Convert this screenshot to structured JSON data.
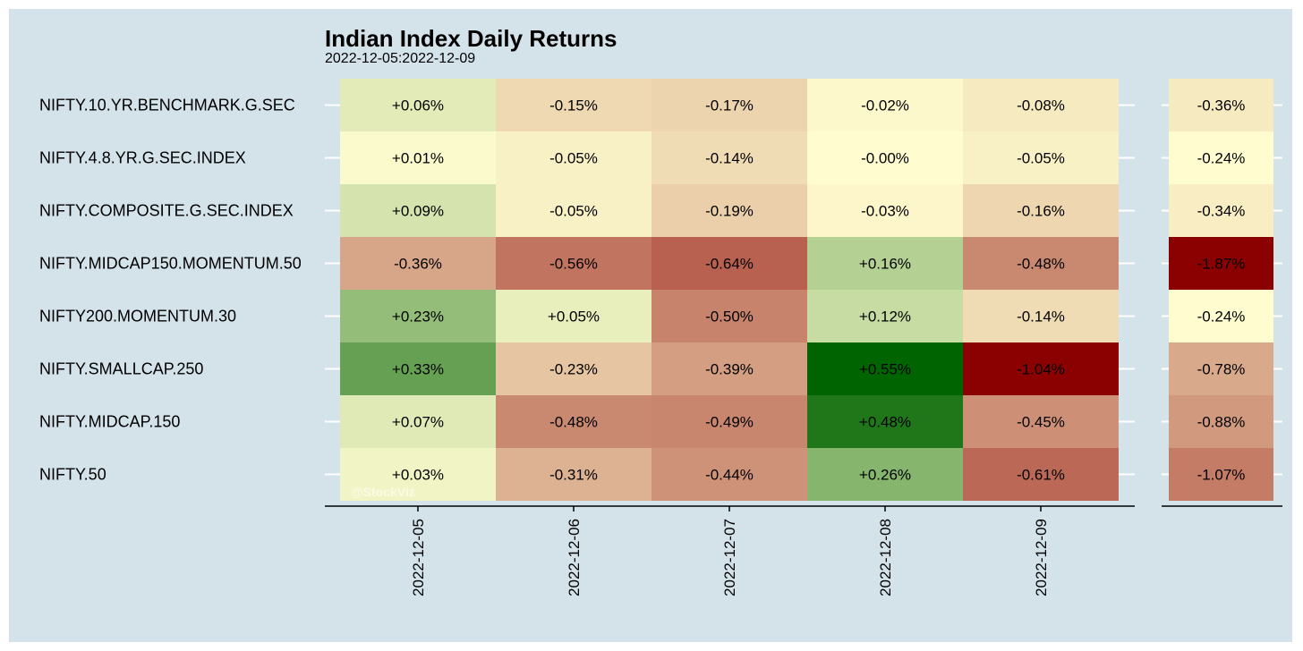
{
  "chart_data": {
    "type": "heatmap",
    "title": "Indian Index Daily Returns",
    "subtitle": "2022-12-05:2022-12-09",
    "watermark": "@StockViz",
    "rows": [
      "NIFTY.10.YR.BENCHMARK.G.SEC",
      "NIFTY.4.8.YR.G.SEC.INDEX",
      "NIFTY.COMPOSITE.G.SEC.INDEX",
      "NIFTY.MIDCAP150.MOMENTUM.50",
      "NIFTY200.MOMENTUM.30",
      "NIFTY.SMALLCAP.250",
      "NIFTY.MIDCAP.150",
      "NIFTY.50"
    ],
    "columns": [
      "2022-12-05",
      "2022-12-06",
      "2022-12-07",
      "2022-12-08",
      "2022-12-09"
    ],
    "values": [
      [
        0.06,
        -0.15,
        -0.17,
        -0.02,
        -0.08
      ],
      [
        0.01,
        -0.05,
        -0.14,
        -0.0,
        -0.05
      ],
      [
        0.09,
        -0.05,
        -0.19,
        -0.03,
        -0.16
      ],
      [
        -0.36,
        -0.56,
        -0.64,
        0.16,
        -0.48
      ],
      [
        0.23,
        0.05,
        -0.5,
        0.12,
        -0.14
      ],
      [
        0.33,
        -0.23,
        -0.39,
        0.55,
        -1.04
      ],
      [
        0.07,
        -0.48,
        -0.49,
        0.48,
        -0.45
      ],
      [
        0.03,
        -0.31,
        -0.44,
        0.26,
        -0.61
      ]
    ],
    "labels": [
      [
        "+0.06%",
        "-0.15%",
        "-0.17%",
        "-0.02%",
        "-0.08%"
      ],
      [
        "+0.01%",
        "-0.05%",
        "-0.14%",
        "-0.00%",
        "-0.05%"
      ],
      [
        "+0.09%",
        "-0.05%",
        "-0.19%",
        "-0.03%",
        "-0.16%"
      ],
      [
        "-0.36%",
        "-0.56%",
        "-0.64%",
        "+0.16%",
        "-0.48%"
      ],
      [
        "+0.23%",
        "+0.05%",
        "-0.50%",
        "+0.12%",
        "-0.14%"
      ],
      [
        "+0.33%",
        "-0.23%",
        "-0.39%",
        "+0.55%",
        "-1.04%"
      ],
      [
        "+0.07%",
        "-0.48%",
        "-0.49%",
        "+0.48%",
        "-0.45%"
      ],
      [
        "+0.03%",
        "-0.31%",
        "-0.44%",
        "+0.26%",
        "-0.61%"
      ]
    ],
    "totals": [
      -0.36,
      -0.24,
      -0.34,
      -1.87,
      -0.24,
      -0.78,
      -0.88,
      -1.07
    ],
    "total_labels": [
      "-0.36%",
      "-0.24%",
      "-0.34%",
      "-1.87%",
      "-0.24%",
      "-0.78%",
      "-0.88%",
      "-1.07%"
    ],
    "colors": {
      "background": "#d4e3ea",
      "positive_max": "#006400",
      "neutral": "#fffdd0",
      "negative_max": "#8b0000",
      "gridline": "#ffffff",
      "axis": "#000000"
    },
    "grid": true,
    "legend": "none"
  }
}
